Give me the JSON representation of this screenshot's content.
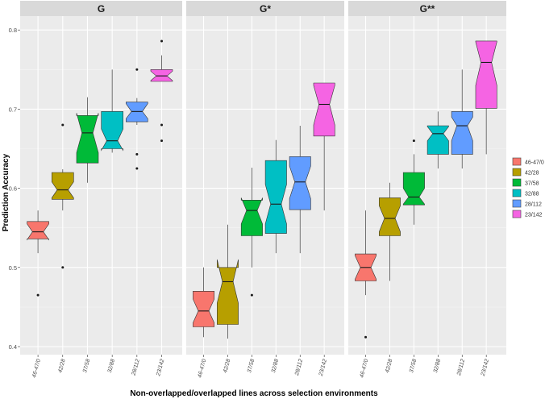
{
  "chart_data": {
    "type": "boxplot",
    "notched": true,
    "ylabel": "Prediction Accuracy",
    "xlabel": "Non-overlapped/overlapped lines across selection environments",
    "ylim": [
      0.4,
      0.8
    ],
    "yticks": [
      "0.4",
      "0.5",
      "0.6",
      "0.7",
      "0.8"
    ],
    "categories": [
      "46-47/0",
      "42/28",
      "37/58",
      "32/88",
      "28/112",
      "23/142"
    ],
    "colors": [
      "#F8766D",
      "#B79F00",
      "#00BA38",
      "#00BFC4",
      "#619CFF",
      "#F564E3"
    ],
    "legend": {
      "position": "right",
      "entries": [
        "46-47/0",
        "42/28",
        "37/58",
        "32/88",
        "28/112",
        "23/142"
      ]
    },
    "panels": [
      {
        "title": "G",
        "boxes": [
          {
            "category": "46-47/0",
            "min": 0.518,
            "q1": 0.536,
            "median": 0.545,
            "q3": 0.558,
            "max": 0.572,
            "notch_low": 0.535,
            "notch_high": 0.555,
            "outliers": [
              0.465
            ]
          },
          {
            "category": "42/28",
            "min": 0.572,
            "q1": 0.586,
            "median": 0.598,
            "q3": 0.62,
            "max": 0.624,
            "notch_low": 0.588,
            "notch_high": 0.608,
            "outliers": [
              0.68,
              0.5
            ]
          },
          {
            "category": "37/58",
            "min": 0.607,
            "q1": 0.632,
            "median": 0.67,
            "q3": 0.692,
            "max": 0.715,
            "notch_low": 0.645,
            "notch_high": 0.695,
            "outliers": []
          },
          {
            "category": "32/88",
            "min": 0.645,
            "q1": 0.65,
            "median": 0.66,
            "q3": 0.697,
            "max": 0.75,
            "notch_low": 0.648,
            "notch_high": 0.675,
            "outliers": []
          },
          {
            "category": "28/112",
            "min": 0.68,
            "q1": 0.684,
            "median": 0.697,
            "q3": 0.709,
            "max": 0.714,
            "notch_low": 0.688,
            "notch_high": 0.707,
            "outliers": [
              0.75,
              0.643,
              0.625
            ]
          },
          {
            "category": "23/142",
            "min": 0.735,
            "q1": 0.735,
            "median": 0.742,
            "q3": 0.75,
            "max": 0.768,
            "notch_low": 0.736,
            "notch_high": 0.748,
            "outliers": [
              0.786,
              0.68,
              0.66
            ]
          }
        ]
      },
      {
        "title": "G*",
        "boxes": [
          {
            "category": "46-47/0",
            "min": 0.412,
            "q1": 0.425,
            "median": 0.445,
            "q3": 0.47,
            "max": 0.5,
            "notch_low": 0.43,
            "notch_high": 0.46,
            "outliers": []
          },
          {
            "category": "42/28",
            "min": 0.41,
            "q1": 0.428,
            "median": 0.482,
            "q3": 0.5,
            "max": 0.554,
            "notch_low": 0.455,
            "notch_high": 0.51,
            "outliers": []
          },
          {
            "category": "37/58",
            "min": 0.5,
            "q1": 0.54,
            "median": 0.572,
            "q3": 0.585,
            "max": 0.626,
            "notch_low": 0.555,
            "notch_high": 0.588,
            "outliers": [
              0.465
            ]
          },
          {
            "category": "32/88",
            "min": 0.518,
            "q1": 0.543,
            "median": 0.58,
            "q3": 0.635,
            "max": 0.661,
            "notch_low": 0.555,
            "notch_high": 0.605,
            "outliers": []
          },
          {
            "category": "28/112",
            "min": 0.518,
            "q1": 0.573,
            "median": 0.608,
            "q3": 0.64,
            "max": 0.679,
            "notch_low": 0.587,
            "notch_high": 0.628,
            "outliers": []
          },
          {
            "category": "23/142",
            "min": 0.572,
            "q1": 0.666,
            "median": 0.706,
            "q3": 0.733,
            "max": 0.733,
            "notch_low": 0.68,
            "notch_high": 0.73,
            "outliers": []
          }
        ]
      },
      {
        "title": "G**",
        "boxes": [
          {
            "category": "46-47/0",
            "min": 0.465,
            "q1": 0.483,
            "median": 0.5,
            "q3": 0.517,
            "max": 0.572,
            "notch_low": 0.485,
            "notch_high": 0.515,
            "outliers": [
              0.412
            ]
          },
          {
            "category": "42/28",
            "min": 0.483,
            "q1": 0.54,
            "median": 0.562,
            "q3": 0.588,
            "max": 0.607,
            "notch_low": 0.545,
            "notch_high": 0.578,
            "outliers": []
          },
          {
            "category": "37/58",
            "min": 0.554,
            "q1": 0.579,
            "median": 0.589,
            "q3": 0.62,
            "max": 0.643,
            "notch_low": 0.58,
            "notch_high": 0.6,
            "outliers": [
              0.66
            ]
          },
          {
            "category": "32/88",
            "min": 0.625,
            "q1": 0.643,
            "median": 0.669,
            "q3": 0.679,
            "max": 0.697,
            "notch_low": 0.66,
            "notch_high": 0.678,
            "outliers": []
          },
          {
            "category": "28/112",
            "min": 0.625,
            "q1": 0.643,
            "median": 0.679,
            "q3": 0.697,
            "max": 0.75,
            "notch_low": 0.66,
            "notch_high": 0.69,
            "outliers": []
          },
          {
            "category": "23/142",
            "min": 0.643,
            "q1": 0.701,
            "median": 0.759,
            "q3": 0.786,
            "max": 0.786,
            "notch_low": 0.73,
            "notch_high": 0.785,
            "outliers": []
          }
        ]
      }
    ]
  }
}
